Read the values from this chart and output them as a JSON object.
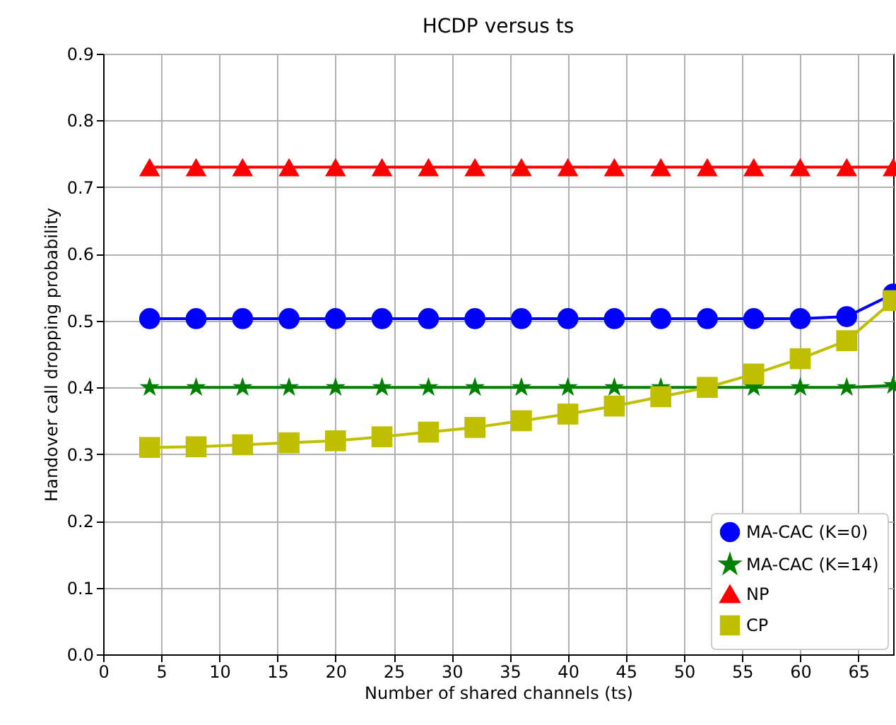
{
  "chart_data": {
    "type": "line",
    "title": "HCDP versus ts",
    "xlabel": "Number of shared channels (ts)",
    "ylabel": "Handover call dropping probability",
    "x": [
      4,
      8,
      12,
      16,
      20,
      24,
      28,
      32,
      36,
      40,
      44,
      48,
      52,
      56,
      60,
      64,
      68
    ],
    "series": [
      {
        "name": "MA-CAC (K=0)",
        "color": "#0000ff",
        "marker": "circle",
        "values": [
          0.503,
          0.503,
          0.503,
          0.503,
          0.503,
          0.503,
          0.503,
          0.503,
          0.503,
          0.503,
          0.503,
          0.503,
          0.503,
          0.503,
          0.503,
          0.506,
          0.54
        ]
      },
      {
        "name": "MA-CAC (K=14)",
        "color": "#008000",
        "marker": "star",
        "values": [
          0.4,
          0.4,
          0.4,
          0.4,
          0.4,
          0.4,
          0.4,
          0.4,
          0.4,
          0.4,
          0.4,
          0.4,
          0.4,
          0.4,
          0.4,
          0.4,
          0.403
        ]
      },
      {
        "name": "NP",
        "color": "#ff0000",
        "marker": "triangle",
        "values": [
          0.73,
          0.73,
          0.73,
          0.73,
          0.73,
          0.73,
          0.73,
          0.73,
          0.73,
          0.73,
          0.73,
          0.73,
          0.73,
          0.73,
          0.73,
          0.73,
          0.73
        ]
      },
      {
        "name": "CP",
        "color": "#bfbf00",
        "marker": "square",
        "values": [
          0.31,
          0.311,
          0.314,
          0.317,
          0.32,
          0.326,
          0.333,
          0.34,
          0.35,
          0.36,
          0.372,
          0.386,
          0.4,
          0.42,
          0.443,
          0.47,
          0.53
        ]
      }
    ],
    "xlim": [
      0,
      68
    ],
    "xticks": [
      0,
      5,
      10,
      15,
      20,
      25,
      30,
      35,
      40,
      45,
      50,
      55,
      60,
      65
    ],
    "ylim": [
      0,
      0.9
    ],
    "yticks": [
      {
        "value": 0,
        "label": "0.0"
      },
      0.1,
      0.2,
      0.3,
      0.4,
      0.5,
      0.6,
      0.7,
      0.8,
      0.9
    ],
    "grid": true,
    "legend": "bottom right",
    "line_style": "solid"
  }
}
